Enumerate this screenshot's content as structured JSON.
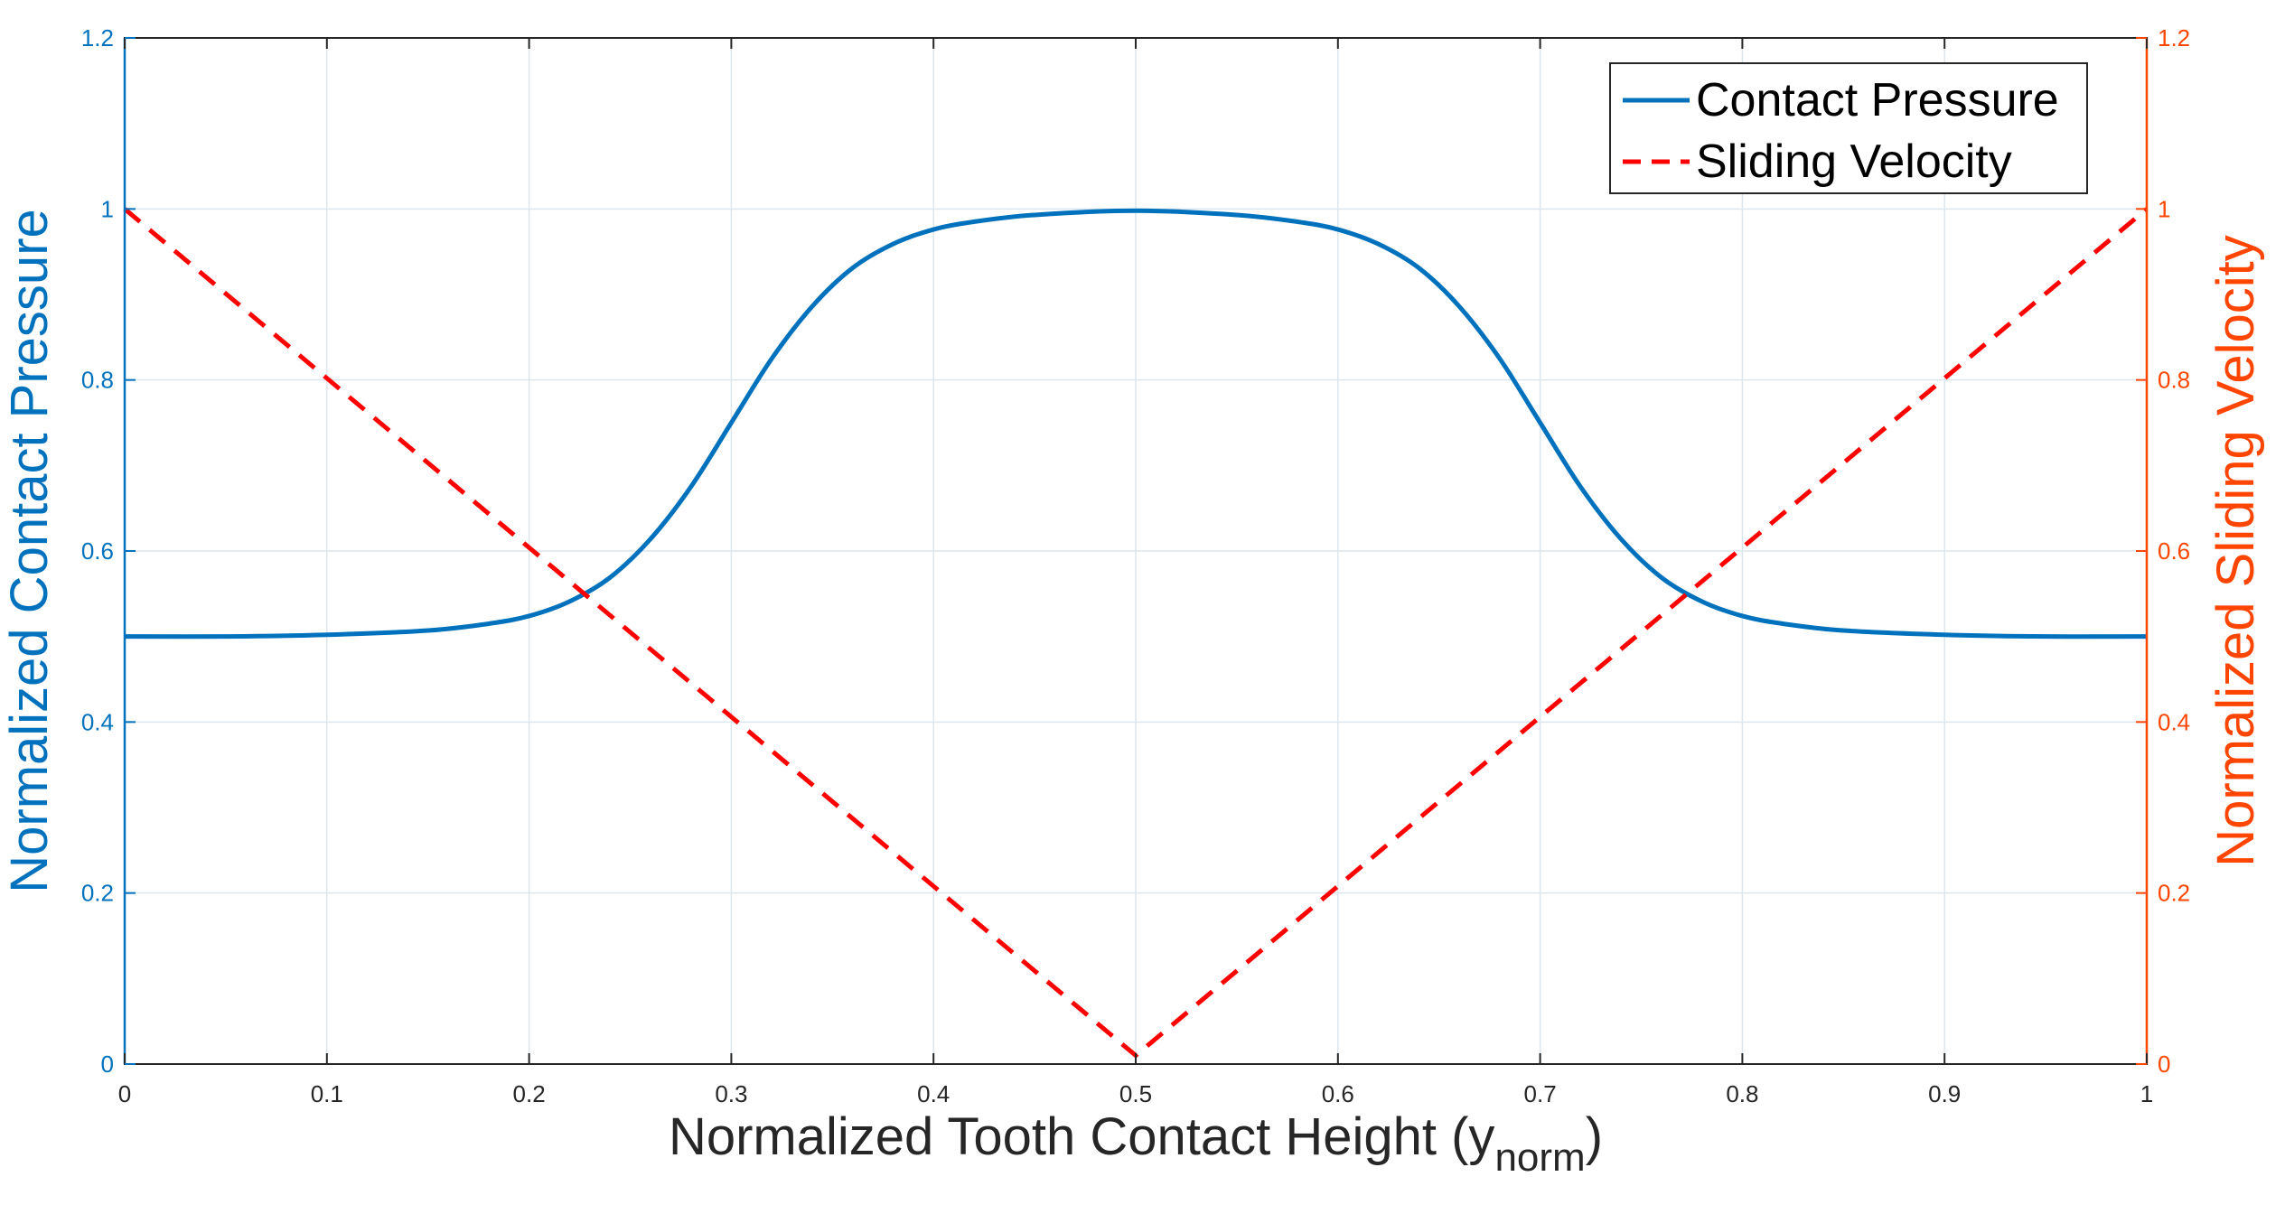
{
  "chart_data": {
    "type": "line",
    "title": "",
    "xlabel": "Normalized Tooth Contact Height (y",
    "xlabel_subscript": "norm",
    "xlabel_suffix": ")",
    "ylabel_left": "Normalized Contact Pressure",
    "ylabel_right": "Normalized Sliding Velocity",
    "xlim": [
      0,
      1
    ],
    "ylim_left": [
      0,
      1.2
    ],
    "ylim_right": [
      0,
      1.2
    ],
    "x_ticks": [
      0,
      0.1,
      0.2,
      0.3,
      0.4,
      0.5,
      0.6,
      0.7,
      0.8,
      0.9,
      1
    ],
    "x_tick_labels": [
      "0",
      "0.1",
      "0.2",
      "0.3",
      "0.4",
      "0.5",
      "0.6",
      "0.7",
      "0.8",
      "0.9",
      "1"
    ],
    "y_ticks_left": [
      0,
      0.2,
      0.4,
      0.6,
      0.8,
      1,
      1.2
    ],
    "y_tick_labels_left": [
      "0",
      "0.2",
      "0.4",
      "0.6",
      "0.8",
      "1",
      "1.2"
    ],
    "y_ticks_right": [
      0,
      0.2,
      0.4,
      0.6,
      0.8,
      1,
      1.2
    ],
    "y_tick_labels_right": [
      "0",
      "0.2",
      "0.4",
      "0.6",
      "0.8",
      "1",
      "1.2"
    ],
    "grid": true,
    "legend_position": "top-right",
    "colors": {
      "left_axis": "#0072BD",
      "right_axis": "#FF4500",
      "pressure_line": "#0072BD",
      "velocity_line": "#FF0000",
      "grid": "#DCE6EE",
      "axis_box": "#262626"
    },
    "series": [
      {
        "name": "Contact Pressure",
        "axis": "left",
        "style": "solid",
        "x": [
          0,
          0.05,
          0.1,
          0.15,
          0.18,
          0.2,
          0.22,
          0.24,
          0.26,
          0.28,
          0.3,
          0.32,
          0.34,
          0.36,
          0.38,
          0.4,
          0.42,
          0.45,
          0.5,
          0.55,
          0.58,
          0.6,
          0.62,
          0.64,
          0.66,
          0.68,
          0.7,
          0.72,
          0.74,
          0.76,
          0.78,
          0.8,
          0.82,
          0.85,
          0.9,
          0.95,
          1
        ],
        "y": [
          0.5,
          0.5,
          0.502,
          0.507,
          0.515,
          0.524,
          0.541,
          0.569,
          0.614,
          0.675,
          0.75,
          0.825,
          0.886,
          0.931,
          0.959,
          0.976,
          0.985,
          0.993,
          0.998,
          0.993,
          0.985,
          0.976,
          0.959,
          0.931,
          0.886,
          0.825,
          0.75,
          0.675,
          0.614,
          0.569,
          0.541,
          0.524,
          0.515,
          0.507,
          0.502,
          0.5,
          0.5
        ]
      },
      {
        "name": "Sliding Velocity",
        "axis": "right",
        "style": "dashed",
        "x": [
          0,
          0.5,
          1
        ],
        "y": [
          1,
          0.01,
          1
        ]
      }
    ]
  }
}
